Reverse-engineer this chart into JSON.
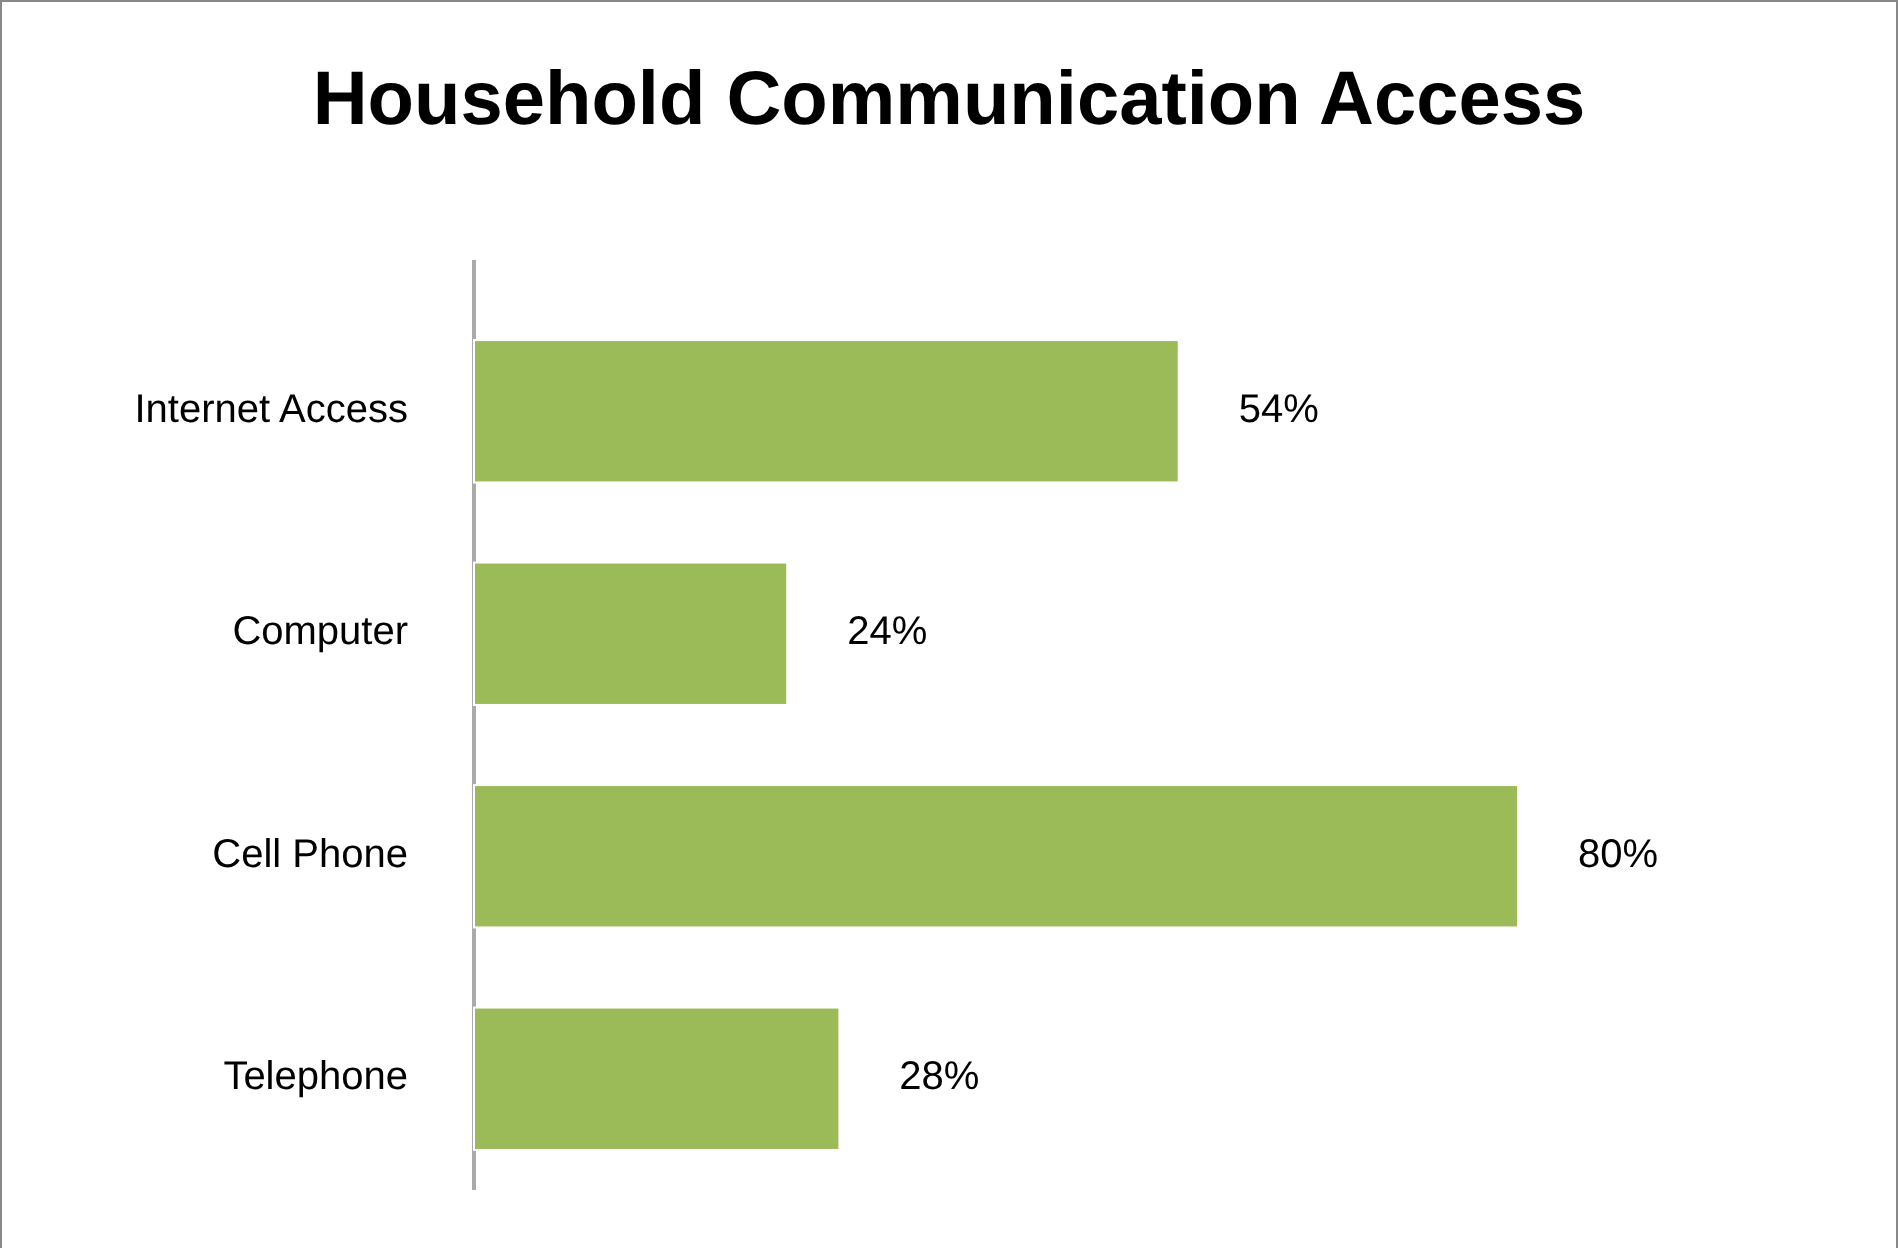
{
  "chart_data": {
    "type": "bar",
    "orientation": "horizontal",
    "title": "Household Communication Access",
    "categories": [
      "Internet Access",
      "Computer",
      "Cell Phone",
      "Telephone"
    ],
    "values": [
      54,
      24,
      80,
      28
    ],
    "value_labels": [
      "54%",
      "24%",
      "80%",
      "28%"
    ],
    "color": "#9bbb59"
  }
}
